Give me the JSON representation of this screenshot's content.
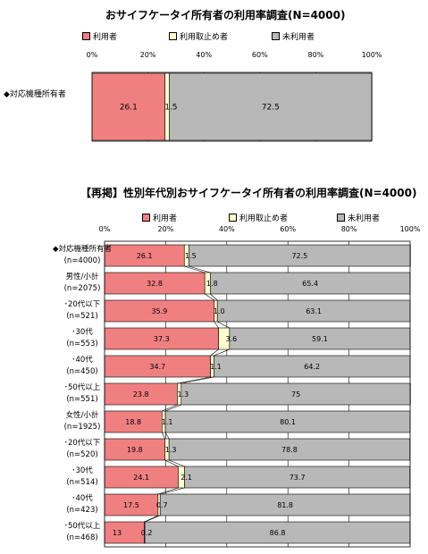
{
  "colors": {
    "used": "#f08080",
    "stopped": "#ffffcc",
    "never": "#b8b8b8"
  },
  "chart_data": [
    {
      "type": "bar",
      "stacked": true,
      "orientation": "horizontal",
      "title": "おサイフケータイ所有者の利用率調査(N=4000)",
      "xlim": [
        0,
        100
      ],
      "ticks": [
        "0%",
        "20%",
        "40%",
        "60%",
        "80%",
        "100%"
      ],
      "legend_placement": "top",
      "categories": [
        {
          "line1": "◆対応機種所有者",
          "line2": ""
        }
      ],
      "series": [
        {
          "name": "利用者",
          "values": [
            26.1
          ]
        },
        {
          "name": "利用取止め者",
          "values": [
            1.5
          ]
        },
        {
          "name": "未利用者",
          "values": [
            72.5
          ]
        }
      ]
    },
    {
      "type": "bar",
      "stacked": true,
      "orientation": "horizontal",
      "title": "【再掲】性別年代別おサイフケータイ所有者の利用率調査(N=4000)",
      "xlim": [
        0,
        100
      ],
      "ticks": [
        "0%",
        "20%",
        "40%",
        "60%",
        "80%",
        "100%"
      ],
      "legend_placement": "top",
      "categories": [
        {
          "line1": "◆対応機種所有者",
          "line2": "(n=4000)"
        },
        {
          "line1": "男性/小計",
          "line2": "(n=2075)"
        },
        {
          "line1": "･20代以下",
          "line2": "(n=521)"
        },
        {
          "line1": "･30代",
          "line2": "(n=553)"
        },
        {
          "line1": "･40代",
          "line2": "(n=450)"
        },
        {
          "line1": "･50代以上",
          "line2": "(n=551)"
        },
        {
          "line1": "女性/小計",
          "line2": "(n=1925)"
        },
        {
          "line1": "･20代以下",
          "line2": "(n=520)"
        },
        {
          "line1": "･30代",
          "line2": "(n=514)"
        },
        {
          "line1": "･40代",
          "line2": "(n=423)"
        },
        {
          "line1": "･50代以上",
          "line2": "(n=468)"
        }
      ],
      "series": [
        {
          "name": "利用者",
          "values": [
            26.1,
            32.8,
            35.9,
            37.3,
            34.7,
            23.8,
            18.8,
            19.8,
            24.1,
            17.5,
            13
          ]
        },
        {
          "name": "利用取止め者",
          "values": [
            1.5,
            1.8,
            1.0,
            3.6,
            1.1,
            1.3,
            1.1,
            1.3,
            2.1,
            0.7,
            0.2
          ]
        },
        {
          "name": "未利用者",
          "values": [
            72.5,
            65.4,
            63.1,
            59.1,
            64.2,
            75.0,
            80.1,
            78.8,
            73.7,
            81.8,
            86.8
          ]
        }
      ]
    }
  ]
}
